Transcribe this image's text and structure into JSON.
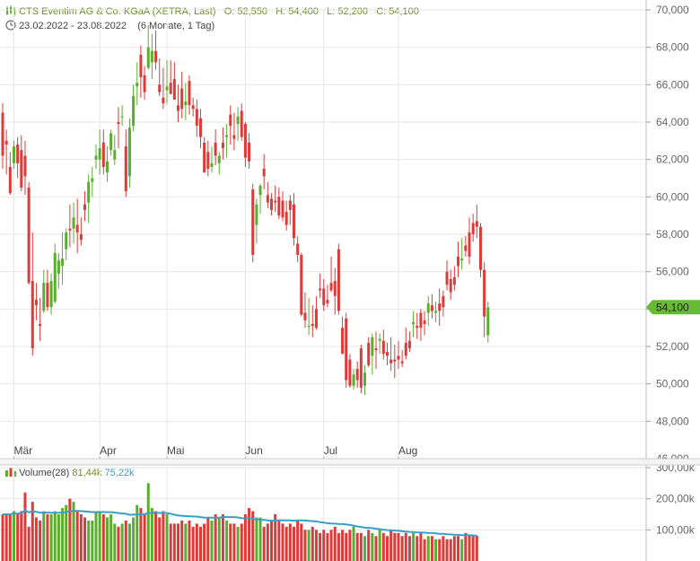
{
  "header": {
    "title": "CTS Eventim AG & Co. KGaA (XETRA, Last)",
    "open_label": "O:",
    "open": "52,550",
    "high_label": "H:",
    "high": "54,400",
    "low_label": "L:",
    "low": "52,200",
    "close_label": "C:",
    "close": "54,100",
    "date_range": "23.02.2022 - 23.08.2022",
    "period": "(6 Monate, 1 Tag)"
  },
  "volume_header": {
    "label": "Volume(28)",
    "volume": "81,44k",
    "average": "75,22k"
  },
  "last_price_label": "54,100",
  "colors": {
    "up": "#5aae2e",
    "down": "#dd3a3a",
    "last_price": "#66bb33",
    "volume_ma": "#3a9fc8",
    "grid": "#e6e6e6"
  },
  "chart_data": {
    "type": "candlestick",
    "price_axis": {
      "min": 46000,
      "max": 70000,
      "ticks": [
        46000,
        48000,
        50000,
        52000,
        54000,
        56000,
        58000,
        60000,
        62000,
        64000,
        66000,
        68000,
        70000
      ],
      "tick_labels": [
        "46,000",
        "48,000",
        "50,000",
        "52,000",
        "54,000",
        "56,000",
        "58,000",
        "60,000",
        "62,000",
        "64,000",
        "66,000",
        "68,000",
        "70,000"
      ]
    },
    "volume_axis": {
      "min": 0,
      "max": 300000,
      "ticks": [
        100000,
        200000,
        300000
      ],
      "tick_labels": [
        "100,00k",
        "200,00k",
        "300,00k"
      ]
    },
    "months": [
      {
        "label": "Mär",
        "index": 3
      },
      {
        "label": "Apr",
        "index": 26
      },
      {
        "label": "Mai",
        "index": 44
      },
      {
        "label": "Jun",
        "index": 65
      },
      {
        "label": "Jul",
        "index": 86
      },
      {
        "label": "Aug",
        "index": 106
      }
    ],
    "last_close": 54100,
    "ohlc": [
      [
        64500,
        65000,
        61500,
        62200
      ],
      [
        63000,
        63600,
        61200,
        62800
      ],
      [
        61600,
        62400,
        60100,
        60200
      ],
      [
        61800,
        63000,
        61500,
        62700
      ],
      [
        62800,
        63200,
        61000,
        61800
      ],
      [
        62500,
        63300,
        60300,
        60500
      ],
      [
        62200,
        63000,
        60100,
        61100
      ],
      [
        60500,
        60800,
        55300,
        55400
      ],
      [
        55500,
        58100,
        51500,
        51900
      ],
      [
        54500,
        55400,
        53400,
        54200
      ],
      [
        53200,
        54600,
        52300,
        53100
      ],
      [
        53900,
        56100,
        53800,
        55400
      ],
      [
        55400,
        56100,
        53900,
        54100
      ],
      [
        54100,
        55900,
        53700,
        55500
      ],
      [
        54400,
        57500,
        54300,
        57000
      ],
      [
        55900,
        57000,
        55100,
        56600
      ],
      [
        56300,
        58100,
        55300,
        56700
      ],
      [
        57200,
        58300,
        56600,
        58100
      ],
      [
        58300,
        59600,
        57300,
        58200
      ],
      [
        58300,
        59700,
        57500,
        58900
      ],
      [
        58500,
        59900,
        57000,
        58100
      ],
      [
        58000,
        58900,
        57400,
        57700
      ],
      [
        59600,
        60300,
        58700,
        59300
      ],
      [
        59700,
        61200,
        58600,
        60800
      ],
      [
        60800,
        61600,
        60000,
        61000
      ],
      [
        62000,
        62800,
        61500,
        62200
      ],
      [
        62000,
        63600,
        61200,
        62600
      ],
      [
        62900,
        63600,
        61200,
        61600
      ],
      [
        61300,
        62700,
        60800,
        61900
      ],
      [
        62500,
        63600,
        62200,
        63400
      ],
      [
        62000,
        63300,
        61700,
        62500
      ],
      [
        64000,
        64800,
        62600,
        63900
      ],
      [
        64300,
        64900,
        63800,
        64300
      ],
      [
        62700,
        63600,
        60000,
        60300
      ],
      [
        61100,
        64200,
        60500,
        63700
      ],
      [
        63800,
        66000,
        63500,
        65400
      ],
      [
        65900,
        67200,
        64900,
        66100
      ],
      [
        67600,
        68100,
        65300,
        66400
      ],
      [
        66500,
        67000,
        65200,
        65600
      ],
      [
        66900,
        69200,
        66800,
        68000
      ],
      [
        67200,
        68700,
        66300,
        67800
      ],
      [
        67800,
        68900,
        66800,
        67200
      ],
      [
        66000,
        67400,
        65400,
        65600
      ],
      [
        65300,
        66900,
        64700,
        65000
      ],
      [
        65700,
        67300,
        65000,
        65900
      ],
      [
        66100,
        67300,
        65500,
        65500
      ],
      [
        66300,
        67200,
        65200,
        65200
      ],
      [
        64900,
        66000,
        64000,
        64600
      ],
      [
        65800,
        66700,
        64200,
        64700
      ],
      [
        64900,
        66100,
        64100,
        65100
      ],
      [
        66200,
        66500,
        64400,
        64900
      ],
      [
        64900,
        65300,
        64300,
        64700
      ],
      [
        64700,
        65200,
        63200,
        63800
      ],
      [
        64200,
        64700,
        62600,
        63200
      ],
      [
        62900,
        63200,
        61300,
        61300
      ],
      [
        62400,
        63000,
        61100,
        61500
      ],
      [
        61600,
        62700,
        61300,
        61800
      ],
      [
        62900,
        63600,
        61700,
        62200
      ],
      [
        61800,
        62400,
        61200,
        62200
      ],
      [
        62900,
        63700,
        62000,
        62600
      ],
      [
        63200,
        63900,
        62100,
        63300
      ],
      [
        64400,
        64900,
        62800,
        63800
      ],
      [
        63300,
        64500,
        62500,
        63100
      ],
      [
        63900,
        64800,
        63000,
        64300
      ],
      [
        64600,
        65000,
        63000,
        63200
      ],
      [
        63900,
        64000,
        61600,
        62100
      ],
      [
        62900,
        63400,
        61500,
        61900
      ],
      [
        60400,
        60700,
        56500,
        56900
      ],
      [
        58500,
        59900,
        57500,
        59600
      ],
      [
        60100,
        60700,
        59100,
        60600
      ],
      [
        61500,
        62300,
        60400,
        61100
      ],
      [
        60100,
        60800,
        59400,
        59700
      ],
      [
        59900,
        60200,
        59000,
        59300
      ],
      [
        59800,
        60600,
        59200,
        59700
      ],
      [
        60000,
        60500,
        58800,
        59000
      ],
      [
        59800,
        60300,
        58700,
        58900
      ],
      [
        59200,
        59800,
        58200,
        58500
      ],
      [
        59800,
        60100,
        58500,
        59300
      ],
      [
        59600,
        60200,
        57400,
        57800
      ],
      [
        57500,
        57900,
        56500,
        56900
      ],
      [
        56900,
        57000,
        53600,
        53700
      ],
      [
        53800,
        54900,
        53000,
        53400
      ],
      [
        53100,
        54600,
        52600,
        53100
      ],
      [
        53200,
        54200,
        52500,
        53100
      ],
      [
        54000,
        54700,
        52900,
        53000
      ],
      [
        55100,
        55900,
        54600,
        55000
      ],
      [
        55100,
        55600,
        53900,
        54200
      ],
      [
        54500,
        55300,
        54100,
        54300
      ],
      [
        55400,
        56800,
        54900,
        55000
      ],
      [
        55500,
        56200,
        53700,
        54700
      ],
      [
        57200,
        57500,
        53700,
        53900
      ],
      [
        53000,
        53600,
        51700,
        51600
      ],
      [
        53500,
        53800,
        49800,
        50200
      ],
      [
        51300,
        51600,
        49800,
        49900
      ],
      [
        49900,
        50800,
        49700,
        50500
      ],
      [
        50800,
        51200,
        49800,
        50200
      ],
      [
        51900,
        52100,
        49500,
        49800
      ],
      [
        49900,
        51000,
        49400,
        50600
      ],
      [
        52200,
        52500,
        50900,
        51000
      ],
      [
        51500,
        52700,
        50500,
        52500
      ],
      [
        51900,
        52800,
        50800,
        51800
      ],
      [
        52300,
        52700,
        51600,
        52400
      ],
      [
        52300,
        52900,
        51300,
        51600
      ],
      [
        51700,
        52200,
        51000,
        51500
      ],
      [
        51300,
        52500,
        50700,
        51100
      ],
      [
        51300,
        52100,
        50300,
        51200
      ],
      [
        51500,
        52300,
        50800,
        51300
      ],
      [
        51200,
        51800,
        50900,
        51100
      ],
      [
        52200,
        53000,
        51300,
        51500
      ],
      [
        52300,
        52800,
        51700,
        51900
      ],
      [
        53200,
        53900,
        52500,
        53300
      ],
      [
        53100,
        53800,
        52400,
        53000
      ],
      [
        53800,
        54000,
        52300,
        53000
      ],
      [
        53400,
        53900,
        52600,
        53200
      ],
      [
        53800,
        54700,
        53100,
        54300
      ],
      [
        54200,
        54800,
        53500,
        53900
      ],
      [
        53800,
        54400,
        53300,
        53900
      ],
      [
        54300,
        55100,
        53100,
        53900
      ],
      [
        54700,
        55000,
        53600,
        54100
      ],
      [
        56000,
        56600,
        55000,
        55300
      ],
      [
        55600,
        56100,
        54500,
        54900
      ],
      [
        55700,
        56300,
        55000,
        55300
      ],
      [
        56800,
        57600,
        55700,
        56300
      ],
      [
        56600,
        57800,
        56100,
        56700
      ],
      [
        57400,
        57900,
        56800,
        57100
      ],
      [
        58100,
        58900,
        56400,
        56800
      ],
      [
        58600,
        59100,
        57600,
        58000
      ],
      [
        58700,
        59600,
        57800,
        58400
      ],
      [
        58400,
        58600,
        55700,
        56100
      ],
      [
        56100,
        56500,
        52500,
        53600
      ],
      [
        52600,
        54400,
        52200,
        54100
      ]
    ],
    "volume": [
      150000,
      150000,
      150000,
      160000,
      150000,
      160000,
      220000,
      110000,
      190000,
      140000,
      130000,
      160000,
      150000,
      150000,
      160000,
      150000,
      170000,
      180000,
      200000,
      190000,
      160000,
      150000,
      140000,
      130000,
      130000,
      160000,
      160000,
      150000,
      140000,
      150000,
      120000,
      110000,
      120000,
      130000,
      120000,
      140000,
      180000,
      170000,
      150000,
      250000,
      170000,
      160000,
      140000,
      160000,
      150000,
      120000,
      120000,
      120000,
      130000,
      120000,
      130000,
      110000,
      120000,
      110000,
      120000,
      140000,
      130000,
      150000,
      140000,
      150000,
      130000,
      120000,
      120000,
      110000,
      120000,
      150000,
      170000,
      160000,
      140000,
      140000,
      110000,
      120000,
      130000,
      150000,
      130000,
      120000,
      110000,
      120000,
      110000,
      130000,
      120000,
      100000,
      100000,
      110000,
      100000,
      90000,
      100000,
      90000,
      100000,
      110000,
      90000,
      100000,
      90000,
      100000,
      110000,
      90000,
      90000,
      80000,
      100000,
      90000,
      80000,
      100000,
      90000,
      80000,
      100000,
      90000,
      90000,
      80000,
      90000,
      80000,
      90000,
      80000,
      90000,
      70000,
      80000,
      80000,
      70000,
      70000,
      80000,
      70000,
      70000,
      80000,
      80000,
      70000,
      90000,
      85000,
      80000,
      81440
    ]
  }
}
